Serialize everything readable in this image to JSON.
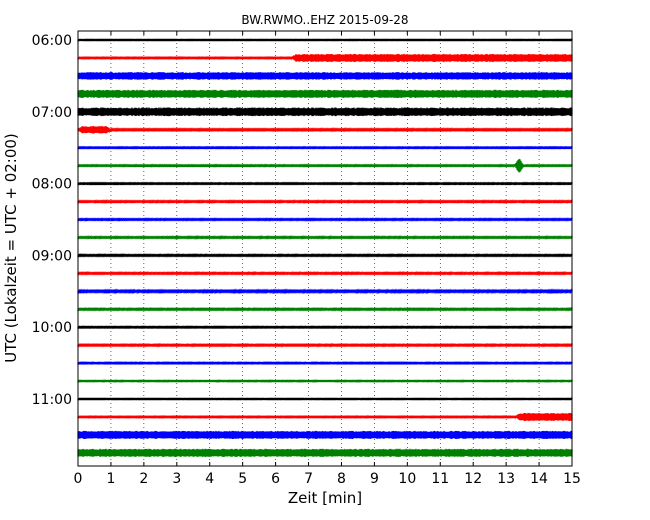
{
  "chart_data": {
    "type": "line",
    "title": "BW.RWMO..EHZ 2015-09-28",
    "xlabel": "Zeit  [min]",
    "ylabel": "UTC (Lokalzeit = UTC + 02:00)",
    "xlim": [
      0,
      15
    ],
    "x_ticks": [
      0,
      1,
      2,
      3,
      4,
      5,
      6,
      7,
      8,
      9,
      10,
      11,
      12,
      13,
      14,
      15
    ],
    "x_tick_labels": [
      "0",
      "1",
      "2",
      "3",
      "4",
      "5",
      "6",
      "7",
      "8",
      "9",
      "10",
      "11",
      "12",
      "13",
      "14",
      "15"
    ],
    "y_tick_labels": [
      "06:00",
      "07:00",
      "08:00",
      "09:00",
      "10:00",
      "11:00"
    ],
    "y_tick_traces": [
      0,
      4,
      8,
      12,
      16,
      20
    ],
    "grid": "vertical-dotted",
    "trace_interval_minutes": 15,
    "colors": [
      "#000000",
      "#ff0000",
      "#0000ff",
      "#008000"
    ],
    "traces": [
      {
        "start": "06:00",
        "color": "#000000",
        "level": 0.05
      },
      {
        "start": "06:15",
        "color": "#ff0000",
        "level": 0.06,
        "burst_from": 6.5,
        "burst_to": 15,
        "burst_level": 0.45
      },
      {
        "start": "06:30",
        "color": "#0000ff",
        "level": 0.42
      },
      {
        "start": "06:45",
        "color": "#008000",
        "level": 0.45
      },
      {
        "start": "07:00",
        "color": "#000000",
        "level": 0.48
      },
      {
        "start": "07:15",
        "color": "#ff0000",
        "level": 0.08,
        "burst_from": 0,
        "burst_to": 1.0,
        "burst_level": 0.42
      },
      {
        "start": "07:30",
        "color": "#0000ff",
        "level": 0.06
      },
      {
        "start": "07:45",
        "color": "#008000",
        "level": 0.06,
        "spike_at": 13.4,
        "spike_level": 0.95
      },
      {
        "start": "08:00",
        "color": "#000000",
        "level": 0.06
      },
      {
        "start": "08:15",
        "color": "#ff0000",
        "level": 0.07
      },
      {
        "start": "08:30",
        "color": "#0000ff",
        "level": 0.07
      },
      {
        "start": "08:45",
        "color": "#008000",
        "level": 0.07
      },
      {
        "start": "09:00",
        "color": "#000000",
        "level": 0.07
      },
      {
        "start": "09:15",
        "color": "#ff0000",
        "level": 0.07
      },
      {
        "start": "09:30",
        "color": "#0000ff",
        "level": 0.09
      },
      {
        "start": "09:45",
        "color": "#008000",
        "level": 0.07
      },
      {
        "start": "10:00",
        "color": "#000000",
        "level": 0.06
      },
      {
        "start": "10:15",
        "color": "#ff0000",
        "level": 0.07
      },
      {
        "start": "10:30",
        "color": "#0000ff",
        "level": 0.06
      },
      {
        "start": "10:45",
        "color": "#008000",
        "level": 0.05
      },
      {
        "start": "11:00",
        "color": "#000000",
        "level": 0.05
      },
      {
        "start": "11:15",
        "color": "#ff0000",
        "level": 0.06,
        "burst_from": 13.3,
        "burst_to": 15,
        "burst_level": 0.45
      },
      {
        "start": "11:30",
        "color": "#0000ff",
        "level": 0.45
      },
      {
        "start": "11:45",
        "color": "#008000",
        "level": 0.45
      }
    ]
  }
}
